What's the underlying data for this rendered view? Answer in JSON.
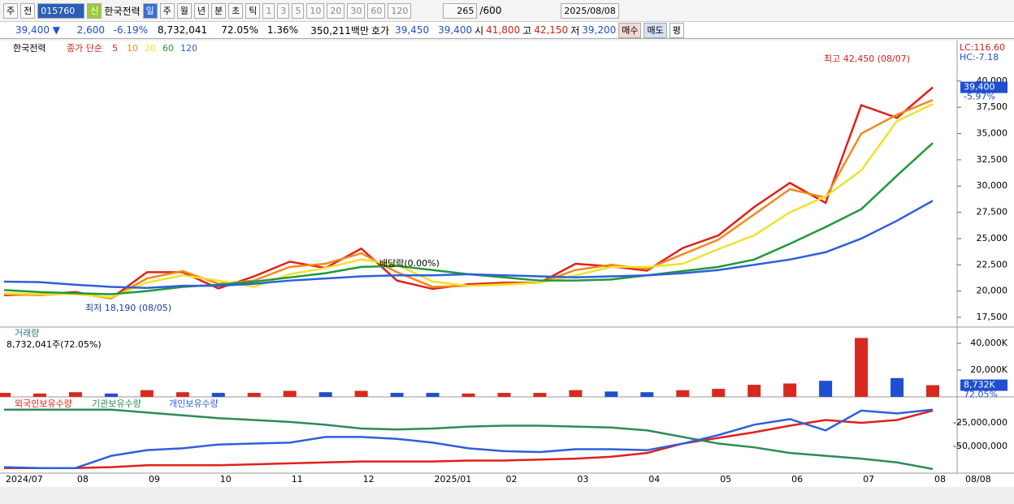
{
  "toolbar": {
    "tabs": [
      "주",
      "전"
    ],
    "code": "015760",
    "new": "신",
    "name": "한국전력",
    "periods": [
      "일",
      "주",
      "월",
      "년",
      "분",
      "초",
      "틱"
    ],
    "intervals": [
      "1",
      "3",
      "5",
      "10",
      "20",
      "30",
      "60",
      "120"
    ],
    "count": "265",
    "max": "/600",
    "date": "2025/08/08"
  },
  "quote": {
    "price": "39,400 ▼",
    "change": "2,600",
    "rate": "-6.19%",
    "volume": "8,732,041",
    "turnover": "72.05%",
    "ratio": "1.36%",
    "amount": "350,211백만",
    "bid_label": "호가",
    "ask": "39,450",
    "bid": "39,400",
    "open_label": "시",
    "open": "41,800",
    "high_label": "고",
    "high": "42,150",
    "low_label": "저",
    "low": "39,200",
    "buttons": [
      "매수",
      "매도",
      "평"
    ]
  },
  "chart_data": [
    {
      "type": "line",
      "name": "한국전력",
      "legend_title": "종가 단순",
      "last_date": "08/08",
      "categories": [
        "2024/07",
        null,
        "08",
        null,
        "09",
        null,
        "10",
        null,
        "11",
        null,
        "12",
        null,
        "2025/01",
        null,
        "02",
        null,
        "03",
        null,
        "04",
        null,
        "05",
        null,
        "06",
        null,
        "07",
        null,
        "08"
      ],
      "series": [
        {
          "name": "5",
          "color": "#e0201a",
          "values": [
            19600,
            19700,
            19900,
            19300,
            21800,
            21800,
            20250,
            21400,
            22800,
            22200,
            24050,
            21000,
            20200,
            20650,
            20800,
            20800,
            22600,
            22350,
            21950,
            24100,
            25300,
            28000,
            30300,
            28400,
            37700,
            36500,
            39400
          ]
        },
        {
          "name": "10",
          "color": "#f08a1c",
          "values": [
            19700,
            19600,
            19800,
            19300,
            21200,
            21900,
            20700,
            21000,
            22300,
            22600,
            23600,
            21800,
            20400,
            20500,
            20700,
            20800,
            22000,
            22500,
            22100,
            23500,
            24900,
            27300,
            29700,
            28900,
            35000,
            36800,
            38200
          ]
        },
        {
          "name": "20",
          "color": "#f2e02a",
          "values": [
            19800,
            19700,
            19700,
            19400,
            20800,
            21500,
            21000,
            20400,
            21600,
            22200,
            23000,
            22500,
            20900,
            20500,
            20600,
            20800,
            21500,
            22300,
            22300,
            22600,
            24000,
            25300,
            27500,
            29000,
            31500,
            36200,
            37800
          ]
        },
        {
          "name": "60",
          "color": "#1e9a3a",
          "values": [
            20100,
            19900,
            19800,
            19700,
            20000,
            20400,
            20600,
            20900,
            21300,
            21700,
            22300,
            22400,
            22000,
            21600,
            21300,
            21000,
            21000,
            21100,
            21500,
            21900,
            22300,
            23000,
            24500,
            26100,
            27800,
            31000,
            34100
          ]
        },
        {
          "name": "120",
          "color": "#2f5fd8",
          "values": [
            20900,
            20850,
            20600,
            20400,
            20300,
            20500,
            20500,
            20700,
            21000,
            21200,
            21400,
            21500,
            21500,
            21600,
            21500,
            21400,
            21300,
            21400,
            21500,
            21700,
            22000,
            22500,
            23000,
            23700,
            25000,
            26700,
            28600
          ]
        }
      ],
      "ylim": [
        16570,
        43700
      ],
      "yticks": [
        {
          "value": 17500,
          "label": "17,500"
        },
        {
          "value": 20000,
          "label": "20,000"
        },
        {
          "value": 22500,
          "label": "22,500"
        },
        {
          "value": 25000,
          "label": "25,000"
        },
        {
          "value": 27500,
          "label": "27,500"
        },
        {
          "value": 30000,
          "label": "30,000"
        },
        {
          "value": 32500,
          "label": "32,500"
        },
        {
          "value": 35000,
          "label": "35,000"
        },
        {
          "value": 37500,
          "label": "37,500"
        },
        {
          "value": 40000,
          "label": "40,000"
        }
      ],
      "annotations": [
        "최고 42,450 (08/07)",
        "최저 18,190 (08/05)",
        "배당락(0.00%)"
      ],
      "lc_label": "LC:116.60",
      "hc_label": "HC:-7.18",
      "last_value": 39400,
      "last_label": "39,400",
      "change_label": "-5.97%"
    },
    {
      "type": "bar",
      "title": "거래량",
      "info": "8,732,041주(72.05%)",
      "up_color": "#d9281e",
      "down_color": "#1f4fd0",
      "values": [
        3000,
        2500,
        3500,
        2500,
        5000,
        3500,
        3000,
        3000,
        4500,
        3500,
        4500,
        3000,
        3000,
        2500,
        3000,
        3000,
        5000,
        4000,
        3500,
        5000,
        6000,
        9000,
        10000,
        12000,
        44000,
        14000,
        8732
      ],
      "ylim": [
        0,
        50900
      ],
      "yticks": [
        {
          "value": 20000,
          "label": "20,000K"
        },
        {
          "value": 40000,
          "label": "40,000K"
        }
      ],
      "last_value": 8732,
      "last_label": "8,732K",
      "ratio_label": "72.05%"
    },
    {
      "type": "line",
      "series": [
        {
          "name": "외국인보유수량",
          "color": "#e0201a",
          "values": [
            -73000000,
            -73000000,
            -73000000,
            -72000000,
            -70000000,
            -70000000,
            -70000000,
            -69000000,
            -68000000,
            -67000000,
            -66000000,
            -66000000,
            -66000000,
            -65000000,
            -65000000,
            -64000000,
            -63000000,
            -61000000,
            -57000000,
            -47000000,
            -41000000,
            -35000000,
            -28000000,
            -22000000,
            -25000000,
            -22000000,
            -12000000
          ]
        },
        {
          "name": "기관보유수량",
          "color": "#2e8b57",
          "values": [
            -11000000,
            -11000000,
            -11000000,
            -11000000,
            -14000000,
            -17000000,
            -20000000,
            -22000000,
            -24000000,
            -27000000,
            -31000000,
            -32000000,
            -31000000,
            -29000000,
            -28000000,
            -28000000,
            -29000000,
            -30000000,
            -33000000,
            -40000000,
            -47000000,
            -51000000,
            -57000000,
            -60000000,
            -63000000,
            -67000000,
            -74000000
          ]
        },
        {
          "name": "개인보유수량",
          "color": "#2f5fd8",
          "values": [
            -72000000,
            -73000000,
            -73000000,
            -60000000,
            -54000000,
            -52000000,
            -48000000,
            -47000000,
            -46000000,
            -40000000,
            -40000000,
            -42000000,
            -46000000,
            -52000000,
            -55000000,
            -56000000,
            -53000000,
            -53000000,
            -54000000,
            -47000000,
            -38000000,
            -27000000,
            -21000000,
            -33000000,
            -12000000,
            -15000000,
            -11000000
          ]
        }
      ],
      "ylim": [
        -78400000,
        1700000
      ],
      "yticks": [
        {
          "value": -50000000,
          "label": "-50,000,000"
        },
        {
          "value": -25000000,
          "label": "-25,000,000"
        }
      ]
    }
  ]
}
